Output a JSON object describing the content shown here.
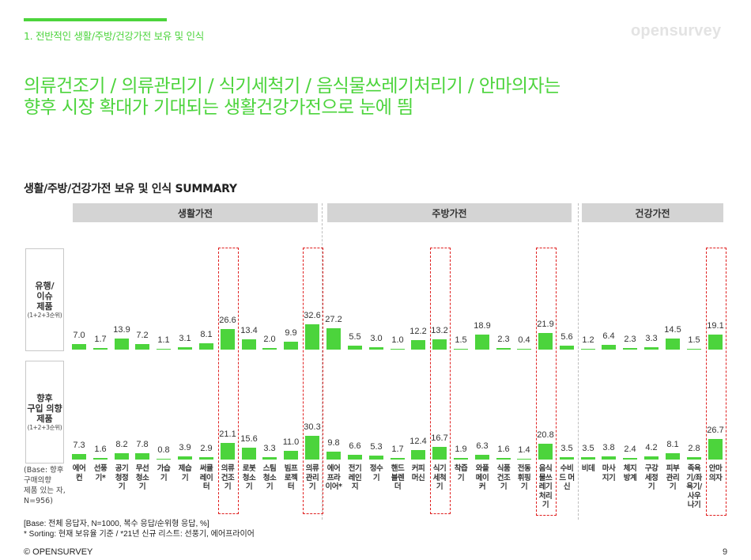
{
  "header": {
    "section_label": "1. 전반적인 생활/주방/건강가전 보유 및 인식",
    "brand": "opensurvey",
    "headline_line1": "의류건조기 / 의류관리기 / 식기세척기 / 음식물쓰레기처리기 / 안마의자는",
    "headline_line2": "향후 시장 확대가 기대되는 생활건강가전으로 눈에 띔"
  },
  "colors": {
    "accent": "#4cd43c",
    "highlight_border": "#e02020",
    "group_header_bg": "#d4d4d4",
    "brand_gray": "#e3e3e3"
  },
  "chart_title": "생활/주방/건강가전 보유 및 인식 SUMMARY",
  "groups": [
    {
      "label": "생활가전"
    },
    {
      "label": "주방가전"
    },
    {
      "label": "건강가전"
    }
  ],
  "rows": [
    {
      "main": "유행/\n이슈\n제품",
      "sub": "(1+2+3순위)"
    },
    {
      "main": "향후\n구입 의향\n제품",
      "sub": "(1+2+3순위)"
    }
  ],
  "base_note": "(Base: 향후\n구매의향\n제품 있는 자,\nN=956)",
  "footnote": "[Base: 전체 응답자, N=1000, 복수 응답/순위형 응답, %]\n* Sorting: 현재 보유율 기준 / *21년 신규 리스트: 선풍기, 에어프라이어",
  "copyright": "© OPENSURVEY",
  "page_number": "9",
  "chart_data": {
    "type": "bar",
    "title": "생활/주방/건강가전 보유 및 인식 SUMMARY",
    "xlabel": "",
    "ylabel": "%",
    "groups": [
      {
        "name": "생활가전",
        "range": [
          0,
          11
        ]
      },
      {
        "name": "주방가전",
        "range": [
          12,
          23
        ]
      },
      {
        "name": "건강가전",
        "range": [
          24,
          30
        ]
      }
    ],
    "categories": [
      "에어\n컨",
      "선풍\n기*",
      "공기\n청정\n기",
      "무선\n청소\n기",
      "가습\n기",
      "제습\n기",
      "써큘\n레이\n터",
      "의류\n건조\n기",
      "로봇\n청소\n기",
      "스팀\n청소\n기",
      "빔프\n로젝\n터",
      "의류\n관리\n기",
      "에어\n프라\n이어*",
      "전기\n레인\n지",
      "정수\n기",
      "핸드\n블렌\n더",
      "커피\n머신",
      "식기\n세척\n기",
      "착즙\n기",
      "와플\n메이\n커",
      "식품\n건조\n기",
      "전동\n휘핑\n기",
      "음식\n물쓰\n레기\n처리\n기",
      "수비\n드 머\n신",
      "비데",
      "마사\n지기",
      "체지\n방계",
      "구강\n세정\n기",
      "피부\n관리\n기",
      "족욕\n기/좌\n욕기/\n사우\n나기",
      "안마\n의자"
    ],
    "series": [
      {
        "name": "유행/이슈 제품 (1+2+3순위)",
        "values": [
          7.0,
          1.7,
          13.9,
          7.2,
          1.1,
          3.1,
          8.1,
          26.6,
          13.4,
          2.0,
          9.9,
          32.6,
          27.2,
          5.5,
          3.0,
          1.0,
          12.2,
          13.2,
          1.5,
          18.9,
          2.3,
          0.4,
          21.9,
          5.6,
          1.2,
          6.4,
          2.3,
          3.3,
          14.5,
          1.5,
          19.1
        ]
      },
      {
        "name": "향후 구입 의향 제품 (1+2+3순위)",
        "values": [
          7.3,
          1.6,
          8.2,
          7.8,
          0.8,
          3.9,
          2.9,
          21.1,
          15.6,
          3.3,
          11.0,
          30.3,
          9.8,
          6.6,
          5.3,
          1.7,
          12.4,
          16.7,
          1.9,
          6.3,
          1.6,
          1.4,
          20.8,
          3.5,
          3.5,
          3.8,
          2.4,
          4.2,
          8.1,
          2.8,
          26.7
        ]
      }
    ],
    "highlighted_categories": [
      7,
      11,
      17,
      22,
      30
    ],
    "annotations": [
      "* Sorting: 현재 보유율 기준",
      "*21년 신규 리스트: 선풍기, 에어프라이어"
    ],
    "grid": false,
    "legend": "row labels on left"
  }
}
